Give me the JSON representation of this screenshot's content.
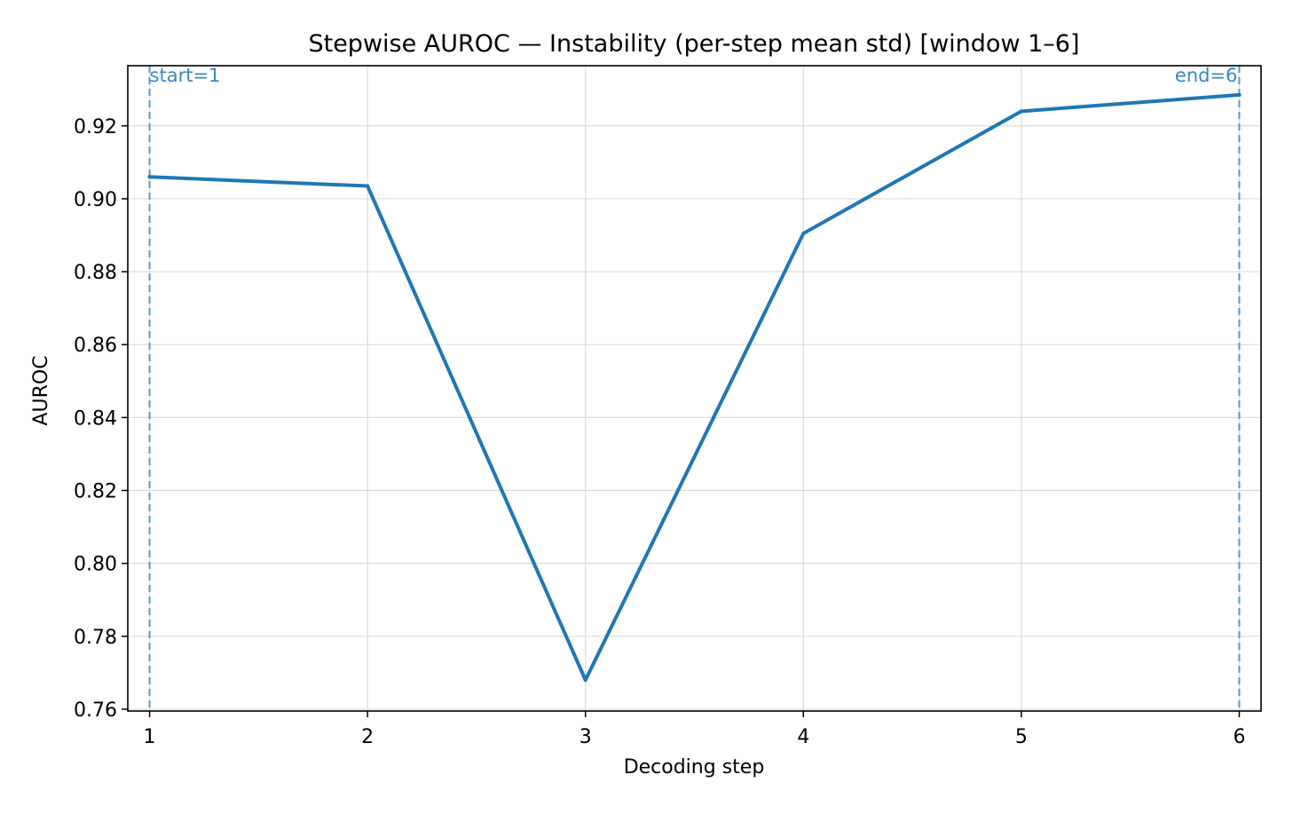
{
  "chart_data": {
    "type": "line",
    "title": "Stepwise AUROC — Instability (per-step mean std)  [window 1–6]",
    "xlabel": "Decoding step",
    "ylabel": "AUROC",
    "x": [
      1,
      2,
      3,
      4,
      5,
      6
    ],
    "series": [
      {
        "values": [
          0.906,
          0.9035,
          0.768,
          0.8905,
          0.924,
          0.9285
        ],
        "color": "#1f77b4"
      }
    ],
    "xlim": [
      0.9,
      6.1
    ],
    "ylim": [
      0.7595,
      0.9365
    ],
    "xticks": [
      1,
      2,
      3,
      4,
      5,
      6
    ],
    "xtick_labels": [
      "1",
      "2",
      "3",
      "4",
      "5",
      "6"
    ],
    "yticks": [
      0.76,
      0.78,
      0.8,
      0.82,
      0.84,
      0.86,
      0.88,
      0.9,
      0.92
    ],
    "ytick_labels": [
      "0.76",
      "0.78",
      "0.80",
      "0.82",
      "0.84",
      "0.86",
      "0.88",
      "0.90",
      "0.92"
    ],
    "grid": true,
    "vlines": [
      {
        "x": 1,
        "label": "start=1",
        "color": "#3a87be",
        "anchor": "start"
      },
      {
        "x": 6,
        "label": "end=6",
        "color": "#3a87be",
        "anchor": "end"
      }
    ]
  }
}
